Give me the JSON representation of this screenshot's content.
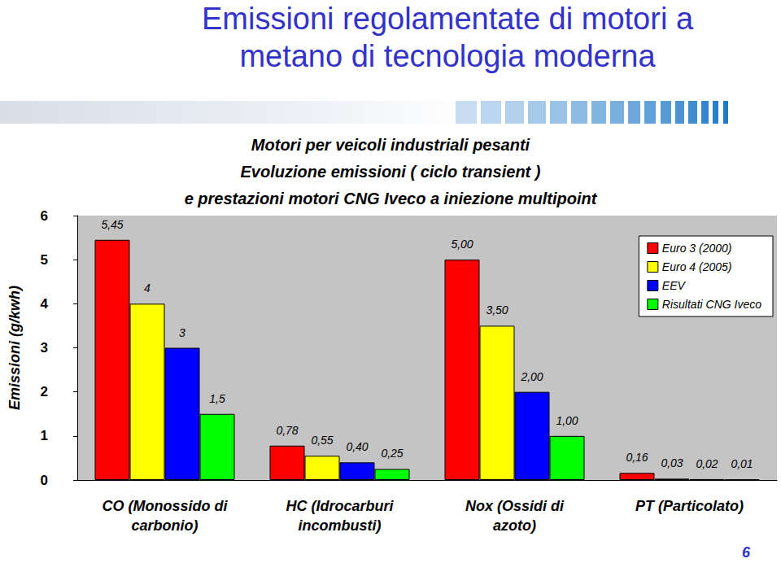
{
  "header": {
    "title": "Emissioni regolamentate di motori a\nmetano di tecnologia moderna",
    "page": "6"
  },
  "chart_data": {
    "type": "bar",
    "title": "Motori per veicoli industriali pesanti\nEvoluzione emissioni ( ciclo transient )\ne prestazioni motori CNG Iveco a iniezione multipoint",
    "ylabel": "Emissioni (g/kwh)",
    "categories": [
      "CO (Monossido di\ncarbonio)",
      "HC (Idrocarburi\nincombusti)",
      "Nox (Ossidi di\nazoto)",
      "PT (Particolato)"
    ],
    "series": [
      {
        "name": "Euro 3 (2000)",
        "color": "#ff0000",
        "values": [
          5.45,
          0.78,
          5.0,
          0.16
        ],
        "value_labels": [
          "5,45",
          "0,78",
          "5,00",
          "0,16"
        ]
      },
      {
        "name": "Euro 4 (2005)",
        "color": "#ffff00",
        "values": [
          4,
          0.55,
          3.5,
          0.03
        ],
        "value_labels": [
          "4",
          "0,55",
          "3,50",
          "0,03"
        ]
      },
      {
        "name": "EEV",
        "color": "#0000ff",
        "values": [
          3,
          0.4,
          2.0,
          0.02
        ],
        "value_labels": [
          "3",
          "0,40",
          "2,00",
          "0,02"
        ]
      },
      {
        "name": "Risultati CNG Iveco",
        "color": "#00ff00",
        "values": [
          1.5,
          0.25,
          1.0,
          0.01
        ],
        "value_labels": [
          "1,5",
          "0,25",
          "1,00",
          "0,01"
        ]
      }
    ],
    "ylim": [
      0,
      6
    ],
    "yticks": [
      0,
      1,
      2,
      3,
      4,
      5,
      6
    ],
    "grid": false,
    "legend": "upper right",
    "data_labels": true
  }
}
